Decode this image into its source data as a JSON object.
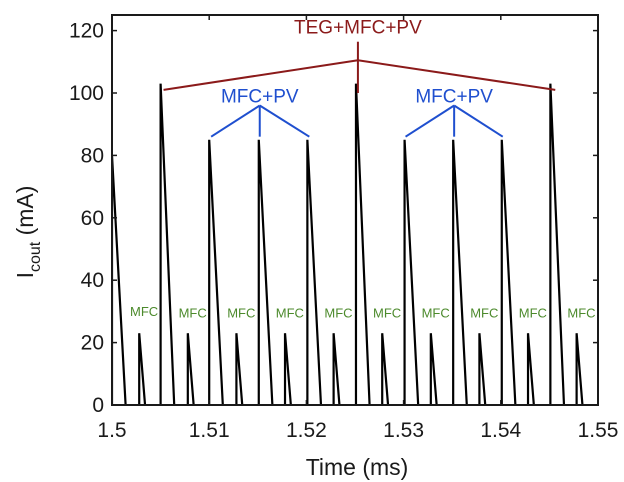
{
  "chart_data": {
    "type": "line",
    "xlabel": "Time (ms)",
    "ylabel_main": "I",
    "ylabel_sub": "cout",
    "ylabel_unit": " (mA)",
    "xlim": [
      1.5,
      1.55
    ],
    "ylim": [
      0,
      125
    ],
    "xticks": [
      1.5,
      1.51,
      1.52,
      1.53,
      1.54,
      1.55
    ],
    "xtick_labels": [
      "1.5",
      "1.51",
      "1.52",
      "1.53",
      "1.54",
      "1.55"
    ],
    "yticks": [
      0,
      20,
      40,
      60,
      80,
      100,
      120
    ],
    "ytick_labels": [
      "0",
      "20",
      "40",
      "60",
      "80",
      "100",
      "120"
    ],
    "grid": false,
    "line_color": "#000000",
    "series": [
      {
        "pulses": [
          {
            "t": 1.5,
            "peak": 80
          },
          {
            "t": 1.5028,
            "peak": 23
          },
          {
            "t": 1.505,
            "peak": 103
          },
          {
            "t": 1.5078,
            "peak": 23
          },
          {
            "t": 1.51,
            "peak": 85
          },
          {
            "t": 1.5128,
            "peak": 23
          },
          {
            "t": 1.5151,
            "peak": 85
          },
          {
            "t": 1.5178,
            "peak": 23
          },
          {
            "t": 1.5201,
            "peak": 85
          },
          {
            "t": 1.5228,
            "peak": 23
          },
          {
            "t": 1.5251,
            "peak": 103
          },
          {
            "t": 1.5278,
            "peak": 23
          },
          {
            "t": 1.5301,
            "peak": 85
          },
          {
            "t": 1.5328,
            "peak": 23
          },
          {
            "t": 1.5351,
            "peak": 85
          },
          {
            "t": 1.5378,
            "peak": 23
          },
          {
            "t": 1.5401,
            "peak": 85
          },
          {
            "t": 1.5428,
            "peak": 23
          },
          {
            "t": 1.5451,
            "peak": 103
          },
          {
            "t": 1.5478,
            "peak": 23
          }
        ]
      }
    ],
    "annotations": {
      "teg": {
        "text": "TEG+MFC+PV",
        "color": "#8b1a1a",
        "x": 1.5253,
        "y": 119,
        "tip_y": 110.5,
        "arm_y": 101,
        "targets": [
          1.5052,
          1.5455
        ]
      },
      "pv_groups": [
        {
          "text": "MFC+PV",
          "color": "#1f4fcf",
          "x": 1.5152,
          "y": 97,
          "tip_y": 96,
          "arm_y": 86,
          "targets": [
            1.5102,
            1.5203
          ]
        },
        {
          "text": "MFC+PV",
          "color": "#1f4fcf",
          "x": 1.5352,
          "y": 97,
          "tip_y": 96,
          "arm_y": 86,
          "targets": [
            1.5302,
            1.5402
          ]
        }
      ],
      "mfc_labels": {
        "text": "MFC",
        "color": "#4c8a2c",
        "x": [
          1.5033,
          1.5083,
          1.5133,
          1.5183,
          1.5233,
          1.5283,
          1.5333,
          1.5383,
          1.5433,
          1.5483
        ],
        "y": [
          28.5,
          28,
          28,
          28,
          28,
          28,
          28,
          28,
          28,
          28
        ]
      }
    }
  }
}
